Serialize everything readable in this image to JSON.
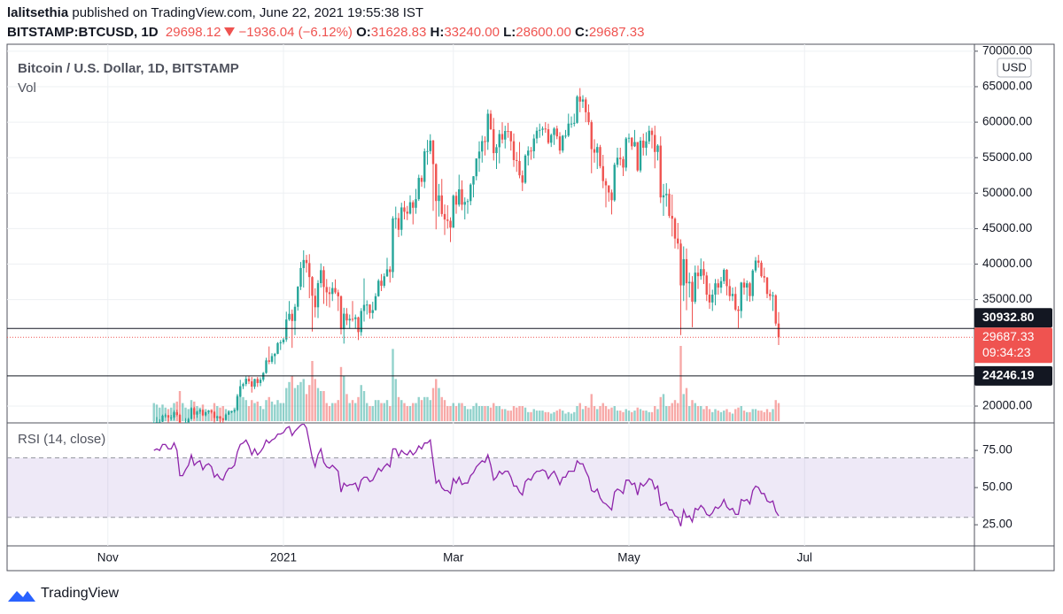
{
  "header": {
    "author": "lalitsethia",
    "published": "published on TradingView.com, June 22, 2021 19:55:38 IST",
    "symbol": "BITSTAMP:BTCUSD, 1D",
    "last": "29698.12",
    "change": "−1936.04 (−6.12%)",
    "ohlc": [
      {
        "label": "O:",
        "value": "31628.83"
      },
      {
        "label": "H:",
        "value": "33240.00"
      },
      {
        "label": "L:",
        "value": "28600.00"
      },
      {
        "label": "C:",
        "value": "29687.33"
      }
    ]
  },
  "footer": {
    "brand": "TradingView"
  },
  "chart_data": {
    "type": "candlestick",
    "title": "Bitcoin / U.S. Dollar, 1D, BITSTAMP",
    "volume_label": "Vol",
    "currency": "USD",
    "up_color": "#26a69a",
    "down_color": "#ef5350",
    "xlim": [
      -51,
      285
    ],
    "xticks": [
      {
        "value": -16,
        "label": "Nov"
      },
      {
        "value": 45,
        "label": "2021"
      },
      {
        "value": 104,
        "label": "Mar"
      },
      {
        "value": 165,
        "label": "May"
      },
      {
        "value": 226,
        "label": "Jul"
      }
    ],
    "ylim": [
      17630,
      70980
    ],
    "yticks": [
      {
        "value": 20000,
        "label": "20000.00"
      },
      {
        "value": 35000,
        "label": "35000.00"
      },
      {
        "value": 40000,
        "label": "40000.00"
      },
      {
        "value": 45000,
        "label": "45000.00"
      },
      {
        "value": 50000,
        "label": "50000.00"
      },
      {
        "value": 55000,
        "label": "55000.00"
      },
      {
        "value": 60000,
        "label": "60000.00"
      },
      {
        "value": 65000,
        "label": "65000.00"
      },
      {
        "value": 70000,
        "label": "70000.00"
      }
    ],
    "grid": true,
    "open": [
      16700,
      17700,
      17800,
      17800,
      18650,
      18700,
      18400,
      18400,
      19150,
      18750,
      17150,
      17150,
      17720,
      18180,
      19700,
      18800,
      19220,
      19450,
      18700,
      19150,
      19380,
      19180,
      18320,
      18550,
      18250,
      18040,
      18800,
      19170,
      19270,
      19440,
      21350,
      22800,
      23100,
      23850,
      23480,
      22740,
      23820,
      23250,
      23720,
      24670,
      26440,
      26240,
      27040,
      27360,
      28880,
      28980,
      29380,
      32190,
      33000,
      31990,
      33990,
      36820,
      39450,
      40580,
      40150,
      38180,
      35540,
      33920,
      37320,
      39150,
      36770,
      36030,
      35790,
      36630,
      36020,
      35470,
      30830,
      33020,
      32070,
      32290,
      32260,
      32500,
      30420,
      33400,
      34260,
      34300,
      33110,
      33520,
      35480,
      37660,
      36950,
      38290,
      39260,
      38880,
      46440,
      46480,
      44840,
      47990,
      47380,
      47120,
      48720,
      47940,
      49150,
      52150,
      51590,
      55890,
      55920,
      57410,
      54090,
      48890,
      49680,
      47060,
      46280,
      46100,
      45140,
      49630,
      48380,
      50540,
      48370,
      48760,
      48880,
      51210,
      52380,
      54880,
      55860,
      57330,
      57200,
      61190,
      59000,
      55640,
      56470,
      58330,
      57550,
      58760,
      58740,
      57310,
      54660,
      54530,
      52510,
      51480,
      55300,
      55990,
      55900,
      57700,
      58800,
      58920,
      59100,
      59000,
      57100,
      58200,
      59100,
      58000,
      56000,
      58100,
      58100,
      59800,
      59800,
      59900,
      63600,
      62900,
      63200,
      61400,
      60000,
      56200,
      55700,
      56500,
      53800,
      51700,
      51100,
      50100,
      49000,
      54000,
      55000,
      54800,
      53600,
      57700,
      57800,
      56600,
      57200,
      53200,
      57400,
      56400,
      57300,
      58800,
      58200,
      55800,
      56700,
      49400,
      49700,
      49900,
      46800,
      46400,
      43600,
      42900,
      37000,
      40700,
      37300,
      37500,
      34700,
      38800,
      38300,
      39300,
      38400,
      35700,
      34600,
      35700,
      37300,
      36700,
      37600,
      39200,
      36900,
      35500,
      35800,
      33600,
      33400,
      37400,
      36700,
      37300,
      35500,
      39100,
      40500,
      40200,
      38300,
      38100,
      35800,
      35500,
      35600,
      31628.83
    ],
    "high": [
      17850,
      18450,
      18150,
      18800,
      18950,
      18750,
      18750,
      19400,
      19500,
      18900,
      17450,
      18300,
      18350,
      19850,
      19900,
      19350,
      19600,
      19550,
      19200,
      19450,
      19450,
      19300,
      18650,
      18600,
      18350,
      18950,
      19400,
      19350,
      19550,
      21550,
      23700,
      23300,
      24200,
      24300,
      24100,
      23850,
      24100,
      24050,
      24800,
      26800,
      28400,
      27450,
      27500,
      29000,
      29300,
      29600,
      33300,
      34800,
      33600,
      34400,
      36900,
      40300,
      41950,
      41300,
      41400,
      38300,
      36600,
      37750,
      40100,
      39700,
      37900,
      36800,
      37450,
      37850,
      36400,
      35600,
      33850,
      33800,
      32900,
      34800,
      32900,
      32600,
      33800,
      38000,
      34900,
      34350,
      34700,
      35900,
      37900,
      38600,
      38700,
      40900,
      39700,
      46750,
      48100,
      47200,
      48650,
      48900,
      48200,
      49700,
      49000,
      50600,
      52600,
      52500,
      56300,
      57500,
      58300,
      57500,
      54200,
      51300,
      52000,
      48400,
      48300,
      46600,
      49800,
      50200,
      52600,
      51800,
      49400,
      49200,
      51400,
      52400,
      54900,
      57300,
      58100,
      58000,
      61800,
      61700,
      60600,
      56900,
      58900,
      60000,
      59500,
      59900,
      58600,
      58400,
      55800,
      57200,
      53200,
      55500,
      56600,
      56500,
      58300,
      59300,
      59800,
      59400,
      60000,
      59800,
      58400,
      59300,
      59500,
      58600,
      58200,
      58900,
      61200,
      60800,
      61200,
      63800,
      64800,
      63800,
      63500,
      62500,
      60300,
      57600,
      57000,
      56800,
      55400,
      52100,
      51100,
      50500,
      54300,
      56400,
      56400,
      55200,
      57900,
      58400,
      57900,
      58900,
      57200,
      57900,
      58400,
      58600,
      59500,
      59200,
      59500,
      56900,
      58000,
      51300,
      51400,
      50600,
      49800,
      46600,
      45800,
      43500,
      42500,
      42200,
      38800,
      38300,
      39800,
      39800,
      40800,
      40400,
      38900,
      37300,
      36400,
      37900,
      37900,
      38200,
      39400,
      39300,
      37900,
      36700,
      36800,
      34100,
      37500,
      38000,
      37700,
      37500,
      39300,
      41000,
      41300,
      40500,
      39500,
      38200,
      36400,
      36100,
      35750,
      33240
    ],
    "low": [
      16550,
      17300,
      17350,
      17750,
      18350,
      17650,
      18000,
      18050,
      18550,
      16200,
      16450,
      16900,
      17550,
      18150,
      18200,
      18350,
      18900,
      18600,
      18550,
      18900,
      18950,
      17650,
      17900,
      17600,
      17600,
      18000,
      18750,
      19000,
      19050,
      19300,
      21250,
      22400,
      22800,
      23100,
      21900,
      22400,
      22700,
      22800,
      23450,
      24550,
      25900,
      25950,
      25900,
      27300,
      27900,
      28700,
      29050,
      32000,
      28200,
      30000,
      33450,
      36350,
      36700,
      38800,
      35200,
      30500,
      32500,
      32400,
      36700,
      34400,
      34100,
      33900,
      34800,
      35800,
      33400,
      30100,
      28800,
      31400,
      30900,
      31900,
      30900,
      29300,
      29900,
      31900,
      32900,
      32300,
      32300,
      33450,
      35400,
      36200,
      36650,
      38200,
      37400,
      38050,
      45000,
      43800,
      44000,
      46300,
      46200,
      47000,
      45600,
      47100,
      48900,
      50900,
      50700,
      54000,
      55500,
      47500,
      44900,
      46700,
      46700,
      44100,
      45000,
      43100,
      45100,
      47100,
      48100,
      47600,
      46300,
      47100,
      48300,
      49400,
      51800,
      53000,
      54300,
      55300,
      56100,
      58900,
      54600,
      53400,
      54200,
      57000,
      56300,
      57800,
      56000,
      53700,
      53000,
      52100,
      50300,
      51300,
      53900,
      54700,
      54900,
      57000,
      57800,
      58100,
      58500,
      56900,
      56500,
      56800,
      57600,
      55500,
      55700,
      57700,
      57900,
      59200,
      59400,
      59800,
      61400,
      62000,
      60000,
      59600,
      52800,
      54300,
      53400,
      53500,
      50700,
      48000,
      48800,
      47000,
      48800,
      53600,
      53900,
      52400,
      53100,
      57100,
      56100,
      56500,
      53000,
      52900,
      55300,
      55300,
      56900,
      56300,
      53500,
      54600,
      48600,
      46800,
      48100,
      46500,
      43900,
      42200,
      42100,
      30000,
      34800,
      33500,
      35300,
      31100,
      34400,
      36500,
      37800,
      37200,
      34800,
      33700,
      33400,
      34200,
      35700,
      35900,
      37200,
      35600,
      34800,
      34800,
      33400,
      31000,
      32400,
      35700,
      34800,
      34700,
      34800,
      38800,
      39500,
      38100,
      37400,
      35200,
      34900,
      33400,
      31300,
      28600
    ],
    "close": [
      17700,
      17800,
      17800,
      18650,
      18700,
      18400,
      18400,
      19150,
      18750,
      17150,
      17150,
      17720,
      18180,
      19700,
      18800,
      19220,
      19450,
      18700,
      19150,
      19380,
      19180,
      18320,
      18550,
      18250,
      18040,
      18800,
      19170,
      19270,
      19440,
      21350,
      22800,
      23100,
      23850,
      23480,
      22740,
      23820,
      23250,
      23720,
      24670,
      26440,
      26240,
      27040,
      27360,
      28880,
      28980,
      29380,
      32190,
      33000,
      31990,
      33990,
      36820,
      39450,
      40580,
      40150,
      38180,
      35540,
      33920,
      37320,
      39150,
      36770,
      36030,
      35790,
      36630,
      36020,
      35470,
      30830,
      33020,
      32070,
      32290,
      32260,
      32500,
      30420,
      33400,
      34260,
      34300,
      33110,
      33520,
      35480,
      37660,
      36950,
      38290,
      39260,
      38880,
      46440,
      46480,
      44840,
      47990,
      47380,
      47120,
      48720,
      47940,
      49150,
      52150,
      51590,
      55890,
      55920,
      57410,
      54090,
      48890,
      49680,
      47060,
      46280,
      46100,
      45140,
      49630,
      48380,
      50540,
      48370,
      48760,
      48880,
      51210,
      52380,
      54880,
      55860,
      57330,
      57200,
      61190,
      59000,
      55640,
      56470,
      58330,
      57550,
      58760,
      58740,
      57310,
      54660,
      54530,
      52510,
      51480,
      55300,
      55990,
      55900,
      57700,
      58800,
      58920,
      59100,
      59000,
      57100,
      58200,
      59100,
      58000,
      56000,
      58100,
      58100,
      59800,
      59800,
      59900,
      63600,
      62900,
      63200,
      61400,
      60000,
      56200,
      55700,
      56500,
      53800,
      51700,
      51100,
      50100,
      49000,
      54000,
      55000,
      54800,
      53600,
      57700,
      57800,
      56600,
      57200,
      53200,
      57400,
      56400,
      57300,
      58800,
      58200,
      55800,
      56700,
      49400,
      49700,
      49900,
      46800,
      46400,
      43600,
      42900,
      37000,
      40700,
      37300,
      37500,
      34700,
      38800,
      38300,
      39300,
      38400,
      35700,
      34600,
      35700,
      37300,
      36700,
      37600,
      39200,
      36900,
      35500,
      35800,
      33600,
      33400,
      37400,
      36700,
      37300,
      35500,
      39100,
      40500,
      40200,
      38300,
      38100,
      35800,
      35500,
      35600,
      31628.83,
      29687.33
    ],
    "volume": {
      "ylim": [
        0,
        100
      ],
      "values": [
        12,
        11,
        9,
        11,
        9,
        8,
        9,
        12,
        13,
        20,
        12,
        9,
        8,
        14,
        13,
        10,
        9,
        11,
        8,
        6,
        8,
        12,
        10,
        9,
        10,
        8,
        7,
        7,
        9,
        18,
        22,
        16,
        14,
        10,
        14,
        12,
        13,
        10,
        8,
        14,
        16,
        13,
        11,
        14,
        12,
        12,
        22,
        26,
        30,
        22,
        24,
        26,
        28,
        18,
        24,
        40,
        28,
        22,
        20,
        20,
        12,
        10,
        12,
        12,
        14,
        36,
        30,
        18,
        12,
        14,
        12,
        16,
        24,
        20,
        12,
        10,
        10,
        14,
        14,
        12,
        12,
        14,
        10,
        48,
        28,
        16,
        14,
        12,
        10,
        10,
        12,
        12,
        16,
        14,
        16,
        16,
        14,
        22,
        28,
        22,
        16,
        14,
        10,
        10,
        12,
        10,
        12,
        12,
        10,
        8,
        8,
        10,
        12,
        10,
        10,
        10,
        10,
        9,
        12,
        10,
        10,
        8,
        8,
        7,
        7,
        10,
        9,
        10,
        10,
        9,
        6,
        6,
        8,
        7,
        7,
        7,
        6,
        6,
        5,
        6,
        7,
        8,
        7,
        5,
        6,
        5,
        6,
        10,
        12,
        8,
        10,
        9,
        18,
        10,
        8,
        10,
        12,
        10,
        8,
        9,
        10,
        7,
        7,
        6,
        8,
        7,
        6,
        7,
        9,
        8,
        7,
        7,
        6,
        6,
        10,
        8,
        16,
        18,
        10,
        10,
        12,
        14,
        12,
        50,
        18,
        22,
        10,
        14,
        12,
        10,
        10,
        8,
        10,
        8,
        6,
        8,
        7,
        6,
        7,
        8,
        6,
        5,
        8,
        9,
        10,
        7,
        6,
        6,
        8,
        8,
        7,
        7,
        6,
        8,
        6,
        8,
        14,
        12
      ]
    },
    "price_lines": [
      {
        "value": 30932.8,
        "label": "30932.80"
      },
      {
        "value": 24246.19,
        "label": "24246.19"
      }
    ],
    "last_price": {
      "value": 29687.33,
      "label": "29687.33",
      "countdown": "09:34:23"
    },
    "rsi": {
      "title": "RSI (14, close)",
      "color": "#8e24aa",
      "band": [
        30,
        70
      ],
      "ylim": [
        10.8,
        92.9
      ],
      "yticks": [
        {
          "value": 25,
          "label": "25.00"
        },
        {
          "value": 50,
          "label": "50.00"
        },
        {
          "value": 75,
          "label": "75.00"
        }
      ],
      "values": [
        75,
        76,
        75,
        79,
        79,
        76,
        76,
        80,
        75,
        58,
        58,
        62,
        65,
        72,
        65,
        67,
        68,
        62,
        65,
        66,
        64,
        57,
        59,
        56,
        55,
        60,
        63,
        63,
        65,
        74,
        79,
        80,
        82,
        78,
        72,
        76,
        72,
        74,
        77,
        82,
        80,
        82,
        83,
        86,
        86,
        87,
        90,
        91,
        85,
        88,
        90,
        92,
        93,
        90,
        80,
        70,
        64,
        72,
        76,
        67,
        64,
        63,
        65,
        63,
        61,
        47,
        53,
        51,
        52,
        52,
        53,
        48,
        55,
        57,
        57,
        54,
        55,
        59,
        63,
        61,
        64,
        66,
        64,
        76,
        76,
        71,
        75,
        73,
        72,
        75,
        72,
        74,
        78,
        76,
        80,
        80,
        82,
        67,
        53,
        55,
        50,
        48,
        48,
        46,
        56,
        53,
        57,
        52,
        53,
        53,
        58,
        60,
        64,
        66,
        68,
        67,
        72,
        65,
        55,
        57,
        61,
        59,
        61,
        61,
        57,
        51,
        51,
        47,
        45,
        54,
        56,
        55,
        59,
        61,
        61,
        62,
        61,
        56,
        59,
        61,
        57,
        52,
        57,
        57,
        61,
        61,
        61,
        68,
        66,
        66,
        61,
        57,
        48,
        47,
        49,
        43,
        40,
        39,
        37,
        35,
        47,
        49,
        48,
        46,
        55,
        55,
        52,
        53,
        45,
        53,
        51,
        53,
        56,
        55,
        49,
        51,
        38,
        39,
        40,
        35,
        35,
        31,
        30,
        24,
        35,
        30,
        31,
        27,
        36,
        35,
        38,
        36,
        32,
        31,
        33,
        37,
        36,
        38,
        42,
        37,
        35,
        36,
        32,
        32,
        42,
        41,
        42,
        39,
        48,
        51,
        50,
        46,
        46,
        41,
        40,
        41,
        34,
        31
      ]
    }
  }
}
